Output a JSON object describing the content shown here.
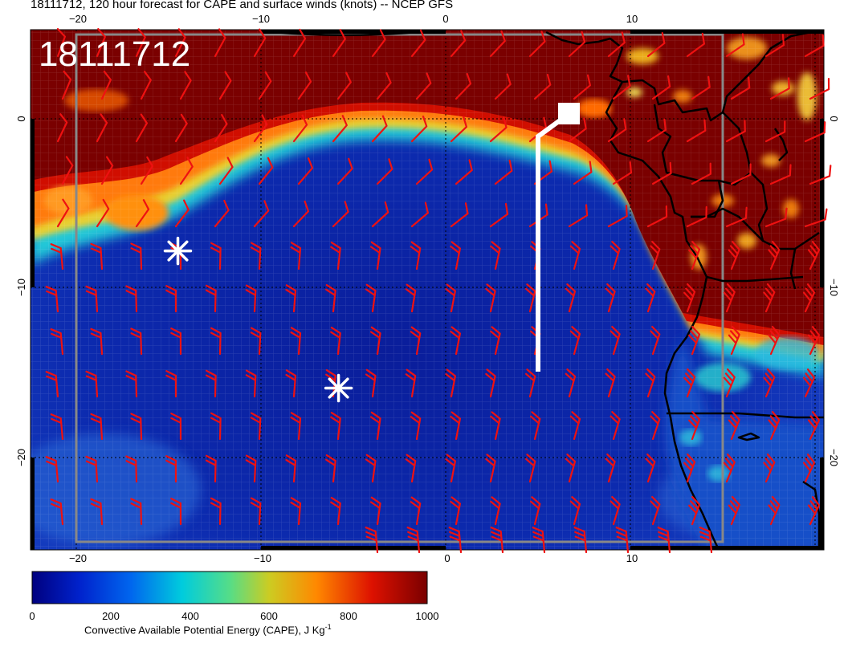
{
  "title": "18111712, 120 hour forecast for CAPE and surface winds (knots) -- NCEP GFS",
  "stamp": "18111712",
  "top_ticks": [
    "−20",
    "−10",
    "0",
    "10"
  ],
  "bottom_ticks": [
    "−20",
    "−10",
    "0",
    "10"
  ],
  "left_ticks": [
    "0",
    "−10",
    "−20"
  ],
  "right_ticks": [
    "0",
    "−10",
    "−20"
  ],
  "colorbar": {
    "ticks": [
      "0",
      "200",
      "400",
      "600",
      "800",
      "1000"
    ],
    "label_text": "Convective Available Potential Energy (CAPE), J Kg",
    "label_sup": "-1",
    "colors": [
      "#00007f",
      "#0033dd",
      "#00aaee",
      "#22ddbb",
      "#cccc22",
      "#ff8800",
      "#dd1100",
      "#7a0000"
    ]
  },
  "markers": [
    {
      "name": "asterisk-marker-1",
      "lon": -14.5,
      "lat": -7.8
    },
    {
      "name": "asterisk-marker-2",
      "lon": -5.8,
      "lat": -15.9
    }
  ],
  "track": {
    "color": "#ffffff"
  },
  "wind_barb_color": "#ee1111"
}
